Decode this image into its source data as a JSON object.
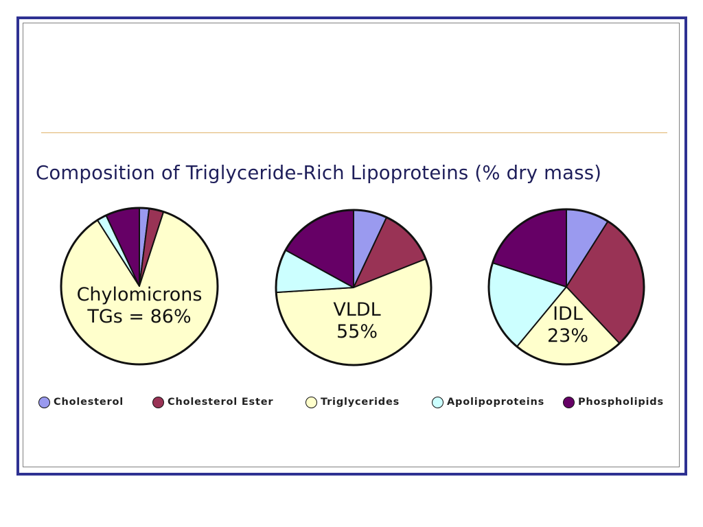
{
  "chart_data": [
    {
      "type": "pie",
      "title": "Composition of Triglyceride-Rich Lipoproteins  (% dry mass)",
      "center_label": [
        "Chylomicrons",
        "TGs = 86%"
      ],
      "categories": [
        "Cholesterol",
        "Cholesterol Ester",
        "Triglycerides",
        "Apolipoproteins",
        "Phospholipids"
      ],
      "values": [
        2,
        3,
        86,
        2,
        7
      ]
    },
    {
      "type": "pie",
      "center_label": [
        "VLDL",
        "55%"
      ],
      "categories": [
        "Cholesterol",
        "Cholesterol Ester",
        "Triglycerides",
        "Apolipoproteins",
        "Phospholipids"
      ],
      "values": [
        7,
        12,
        55,
        9,
        17
      ]
    },
    {
      "type": "pie",
      "center_label": [
        "IDL",
        "23%"
      ],
      "categories": [
        "Cholesterol",
        "Cholesterol Ester",
        "Triglycerides",
        "Apolipoproteins",
        "Phospholipids"
      ],
      "values": [
        9,
        29,
        23,
        19,
        20
      ]
    }
  ],
  "legend": [
    {
      "label": "Cholesterol",
      "color": "#9a9aef"
    },
    {
      "label": "Cholesterol Ester",
      "color": "#993355"
    },
    {
      "label": "Triglycerides",
      "color": "#ffffcc"
    },
    {
      "label": "Apolipoproteins",
      "color": "#ccffff"
    },
    {
      "label": "Phospholipids",
      "color": "#660066"
    }
  ]
}
